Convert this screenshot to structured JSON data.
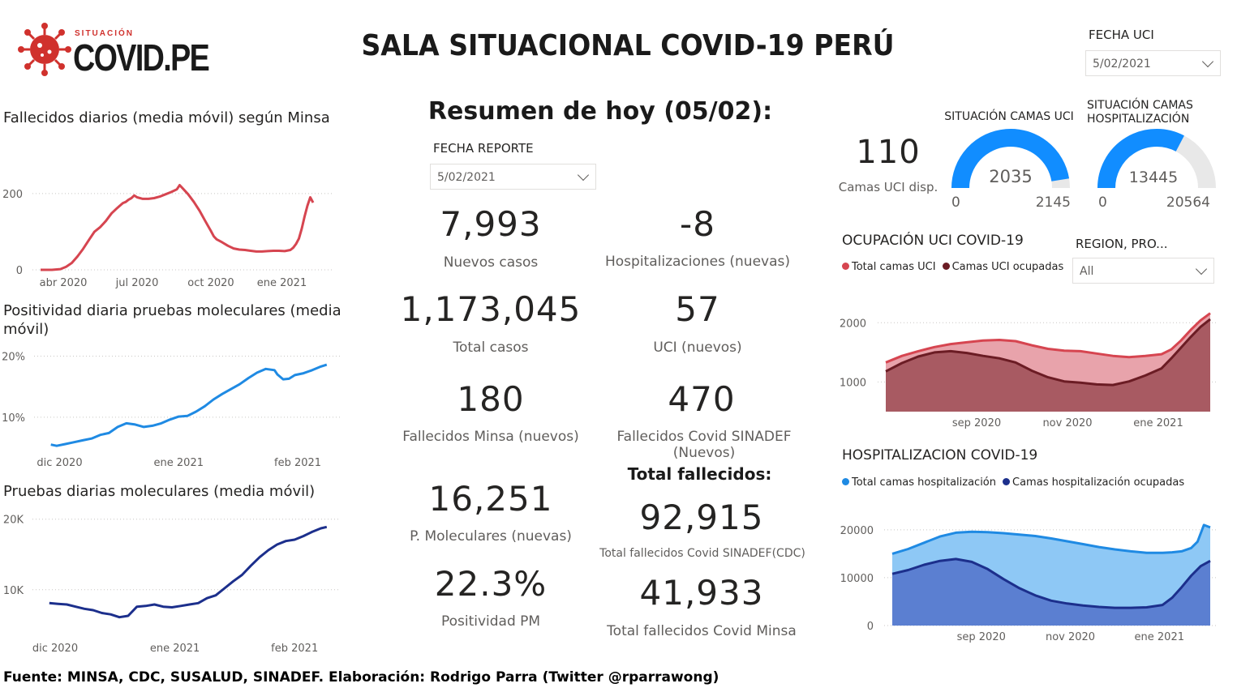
{
  "header": {
    "logo_small": "SITUACIÓN",
    "logo_big": "COVID.PE",
    "title": "SALA SITUACIONAL COVID-19 PERÚ"
  },
  "slicers": {
    "fecha_uci": {
      "label": "FECHA UCI",
      "value": "5/02/2021"
    },
    "fecha_reporte": {
      "label": "FECHA REPORTE",
      "value": "5/02/2021"
    },
    "region": {
      "label": "REGION, PRO...",
      "value": "All"
    }
  },
  "resumen_title": "Resumen de hoy (05/02):",
  "kpis": {
    "nuevos_casos": {
      "value": "7,993",
      "label": "Nuevos casos"
    },
    "hospitalizaciones": {
      "value": "-8",
      "label": "Hospitalizaciones (nuevas)"
    },
    "total_casos": {
      "value": "1,173,045",
      "label": "Total casos"
    },
    "uci_nuevos": {
      "value": "57",
      "label": "UCI (nuevos)"
    },
    "fallecidos_minsa": {
      "value": "180",
      "label": "Fallecidos Minsa (nuevos)"
    },
    "fallecidos_sinadef": {
      "value": "470",
      "label": "Fallecidos Covid SINADEF (Nuevos)"
    },
    "p_moleculares": {
      "value": "16,251",
      "label": "P. Moleculares (nuevas)"
    },
    "positividad": {
      "value": "22.3%",
      "label": "Positividad PM"
    },
    "total_fallecidos_title": "Total fallecidos:",
    "total_sinadef": {
      "value": "92,915",
      "label": "Total fallecidos Covid SINADEF(CDC)"
    },
    "total_minsa": {
      "value": "41,933",
      "label": "Total fallecidos Covid Minsa"
    },
    "camas_uci": {
      "value": "110",
      "label": "Camas UCI disp."
    }
  },
  "gauges": {
    "uci": {
      "title": "SITUACIÓN CAMAS UCI",
      "value": 2035,
      "min": 0,
      "max": 2145,
      "value_label": "2035",
      "min_label": "0",
      "max_label": "2145",
      "color": "#118dff"
    },
    "hosp": {
      "title_1": "SITUACIÓN CAMAS",
      "title_2": "HOSPITALIZACIÓN",
      "value": 13445,
      "min": 0,
      "max": 20564,
      "value_label": "13445",
      "min_label": "0",
      "max_label": "20564",
      "color": "#118dff"
    }
  },
  "footer": "Fuente: MINSA, CDC, SUSALUD, SINADEF. Elaboración: Rodrigo Parra (Twitter @rparrawong)",
  "chart_data": [
    {
      "id": "fallecidos",
      "type": "line",
      "title": "Fallecidos diarios (media móvil) según Minsa",
      "color": "#d64550",
      "xlim": [
        0,
        100
      ],
      "ylim": [
        0,
        240
      ],
      "x_ticks": [
        {
          "x": 8,
          "label": "abr 2020"
        },
        {
          "x": 34,
          "label": "jul 2020"
        },
        {
          "x": 60,
          "label": "oct 2020"
        },
        {
          "x": 85,
          "label": "ene 2021"
        }
      ],
      "y_ticks": [
        {
          "v": 0,
          "label": "0"
        },
        {
          "v": 200,
          "label": "200"
        }
      ],
      "points": [
        [
          0,
          0
        ],
        [
          4,
          0
        ],
        [
          7,
          2
        ],
        [
          9,
          8
        ],
        [
          11,
          18
        ],
        [
          13,
          35
        ],
        [
          15,
          55
        ],
        [
          17,
          78
        ],
        [
          19,
          100
        ],
        [
          21,
          112
        ],
        [
          23,
          128
        ],
        [
          25,
          148
        ],
        [
          27,
          162
        ],
        [
          29,
          175
        ],
        [
          30,
          178
        ],
        [
          31,
          184
        ],
        [
          32,
          188
        ],
        [
          33,
          195
        ],
        [
          34,
          190
        ],
        [
          36,
          186
        ],
        [
          38,
          186
        ],
        [
          40,
          188
        ],
        [
          42,
          192
        ],
        [
          44,
          198
        ],
        [
          46,
          204
        ],
        [
          48,
          211
        ],
        [
          49,
          222
        ],
        [
          50,
          214
        ],
        [
          52,
          198
        ],
        [
          54,
          178
        ],
        [
          56,
          155
        ],
        [
          58,
          128
        ],
        [
          60,
          102
        ],
        [
          61,
          88
        ],
        [
          62,
          80
        ],
        [
          64,
          72
        ],
        [
          66,
          63
        ],
        [
          68,
          56
        ],
        [
          70,
          53
        ],
        [
          72,
          52
        ],
        [
          74,
          50
        ],
        [
          76,
          48
        ],
        [
          78,
          48
        ],
        [
          80,
          49
        ],
        [
          82,
          50
        ],
        [
          84,
          50
        ],
        [
          86,
          49
        ],
        [
          88,
          52
        ],
        [
          89,
          58
        ],
        [
          90,
          68
        ],
        [
          91,
          82
        ],
        [
          92,
          108
        ],
        [
          93,
          140
        ],
        [
          94,
          168
        ],
        [
          95,
          190
        ],
        [
          96,
          176
        ]
      ]
    },
    {
      "id": "positividad",
      "type": "line",
      "title": "Positividad diaria pruebas moleculares (media móvil)",
      "color": "#1f8ae3",
      "xlim": [
        0,
        100
      ],
      "ylim": [
        4,
        21
      ],
      "x_ticks": [
        {
          "x": 6,
          "label": "dic 2020"
        },
        {
          "x": 47,
          "label": "ene 2021"
        },
        {
          "x": 88,
          "label": "feb 2021"
        }
      ],
      "y_ticks": [
        {
          "v": 10,
          "label": "10%"
        },
        {
          "v": 20,
          "label": "20%"
        }
      ],
      "points": [
        [
          3,
          5.5
        ],
        [
          5,
          5.3
        ],
        [
          8,
          5.6
        ],
        [
          11,
          5.9
        ],
        [
          14,
          6.2
        ],
        [
          17,
          6.5
        ],
        [
          20,
          7.1
        ],
        [
          23,
          7.4
        ],
        [
          26,
          8.4
        ],
        [
          29,
          9.0
        ],
        [
          32,
          8.8
        ],
        [
          35,
          8.4
        ],
        [
          38,
          8.6
        ],
        [
          41,
          9.0
        ],
        [
          44,
          9.6
        ],
        [
          47,
          10.1
        ],
        [
          50,
          10.2
        ],
        [
          53,
          10.9
        ],
        [
          56,
          11.8
        ],
        [
          59,
          12.9
        ],
        [
          62,
          13.8
        ],
        [
          65,
          14.6
        ],
        [
          68,
          15.4
        ],
        [
          71,
          16.4
        ],
        [
          74,
          17.3
        ],
        [
          77,
          17.9
        ],
        [
          80,
          17.7
        ],
        [
          81,
          17.0
        ],
        [
          83,
          16.2
        ],
        [
          85,
          16.3
        ],
        [
          87,
          16.9
        ],
        [
          90,
          17.2
        ],
        [
          93,
          17.7
        ],
        [
          96,
          18.3
        ],
        [
          98,
          18.6
        ]
      ]
    },
    {
      "id": "pruebas",
      "type": "line",
      "title": "Pruebas diarias moleculares (media móvil)",
      "color": "#1c2f8c",
      "xlim": [
        0,
        100
      ],
      "ylim": [
        4000,
        21000
      ],
      "x_ticks": [
        {
          "x": 5,
          "label": "dic 2020"
        },
        {
          "x": 46,
          "label": "ene 2021"
        },
        {
          "x": 87,
          "label": "feb 2021"
        }
      ],
      "y_ticks": [
        {
          "v": 10000,
          "label": "10K"
        },
        {
          "v": 20000,
          "label": "20K"
        }
      ],
      "points": [
        [
          3,
          8100
        ],
        [
          6,
          8000
        ],
        [
          9,
          7900
        ],
        [
          12,
          7600
        ],
        [
          15,
          7300
        ],
        [
          18,
          7100
        ],
        [
          21,
          6700
        ],
        [
          24,
          6500
        ],
        [
          27,
          6100
        ],
        [
          30,
          6300
        ],
        [
          33,
          7600
        ],
        [
          36,
          7700
        ],
        [
          39,
          7900
        ],
        [
          42,
          7600
        ],
        [
          45,
          7500
        ],
        [
          48,
          7700
        ],
        [
          51,
          7900
        ],
        [
          54,
          8100
        ],
        [
          57,
          8800
        ],
        [
          60,
          9200
        ],
        [
          63,
          10200
        ],
        [
          66,
          11200
        ],
        [
          69,
          12100
        ],
        [
          72,
          13400
        ],
        [
          75,
          14600
        ],
        [
          78,
          15600
        ],
        [
          81,
          16400
        ],
        [
          84,
          16900
        ],
        [
          87,
          17100
        ],
        [
          90,
          17600
        ],
        [
          93,
          18200
        ],
        [
          96,
          18700
        ],
        [
          98,
          18900
        ]
      ]
    },
    {
      "id": "uci",
      "type": "area",
      "title": "OCUPACIÓN UCI COVID-19",
      "xlim": [
        0,
        100
      ],
      "ylim": [
        500,
        2250
      ],
      "x_ticks": [
        {
          "x": 28,
          "label": "sep 2020"
        },
        {
          "x": 56,
          "label": "nov 2020"
        },
        {
          "x": 84,
          "label": "ene 2021"
        }
      ],
      "y_ticks": [
        {
          "v": 1000,
          "label": "1000"
        },
        {
          "v": 2000,
          "label": "2000"
        }
      ],
      "series": [
        {
          "name": "Total camas UCI",
          "color": "#d64550",
          "fill": "#e8a3ab",
          "points": [
            [
              0,
              1330
            ],
            [
              5,
              1440
            ],
            [
              10,
              1520
            ],
            [
              15,
              1590
            ],
            [
              20,
              1640
            ],
            [
              25,
              1670
            ],
            [
              30,
              1700
            ],
            [
              35,
              1710
            ],
            [
              40,
              1690
            ],
            [
              45,
              1620
            ],
            [
              50,
              1560
            ],
            [
              55,
              1530
            ],
            [
              60,
              1520
            ],
            [
              65,
              1480
            ],
            [
              70,
              1440
            ],
            [
              75,
              1420
            ],
            [
              80,
              1440
            ],
            [
              85,
              1470
            ],
            [
              88,
              1550
            ],
            [
              91,
              1700
            ],
            [
              94,
              1880
            ],
            [
              97,
              2040
            ],
            [
              100,
              2160
            ]
          ]
        },
        {
          "name": "Camas UCI ocupadas",
          "color": "#6b1c24",
          "fill": "#a85a62",
          "points": [
            [
              0,
              1180
            ],
            [
              5,
              1320
            ],
            [
              10,
              1430
            ],
            [
              15,
              1500
            ],
            [
              20,
              1520
            ],
            [
              25,
              1490
            ],
            [
              30,
              1440
            ],
            [
              35,
              1400
            ],
            [
              40,
              1330
            ],
            [
              45,
              1190
            ],
            [
              50,
              1080
            ],
            [
              55,
              1010
            ],
            [
              60,
              990
            ],
            [
              65,
              960
            ],
            [
              70,
              950
            ],
            [
              75,
              1010
            ],
            [
              80,
              1110
            ],
            [
              85,
              1230
            ],
            [
              88,
              1400
            ],
            [
              91,
              1580
            ],
            [
              94,
              1760
            ],
            [
              97,
              1930
            ],
            [
              100,
              2060
            ]
          ]
        }
      ]
    },
    {
      "id": "hosp",
      "type": "area",
      "title": "HOSPITALIZACION COVID-19",
      "xlim": [
        0,
        100
      ],
      "ylim": [
        0,
        22000
      ],
      "x_ticks": [
        {
          "x": 28,
          "label": "sep 2020"
        },
        {
          "x": 56,
          "label": "nov 2020"
        },
        {
          "x": 84,
          "label": "ene 2021"
        }
      ],
      "y_ticks": [
        {
          "v": 0,
          "label": "0"
        },
        {
          "v": 10000,
          "label": "10000"
        },
        {
          "v": 20000,
          "label": "20000"
        }
      ],
      "series": [
        {
          "name": "Total camas hospitalización",
          "color": "#1f8ae3",
          "fill": "#8ec8f5",
          "points": [
            [
              0,
              15000
            ],
            [
              5,
              16000
            ],
            [
              10,
              17300
            ],
            [
              15,
              18600
            ],
            [
              20,
              19400
            ],
            [
              25,
              19600
            ],
            [
              30,
              19500
            ],
            [
              35,
              19300
            ],
            [
              40,
              19000
            ],
            [
              45,
              18700
            ],
            [
              50,
              18200
            ],
            [
              55,
              17600
            ],
            [
              60,
              17000
            ],
            [
              65,
              16400
            ],
            [
              70,
              15900
            ],
            [
              75,
              15500
            ],
            [
              80,
              15200
            ],
            [
              85,
              15200
            ],
            [
              88,
              15300
            ],
            [
              91,
              15500
            ],
            [
              94,
              16200
            ],
            [
              96,
              17500
            ],
            [
              98,
              21000
            ],
            [
              100,
              20500
            ]
          ]
        },
        {
          "name": "Camas hospitalización ocupadas",
          "color": "#1c2f8c",
          "fill": "#5b7fd1",
          "points": [
            [
              0,
              10800
            ],
            [
              5,
              11600
            ],
            [
              10,
              12700
            ],
            [
              15,
              13500
            ],
            [
              20,
              13900
            ],
            [
              25,
              13300
            ],
            [
              30,
              11800
            ],
            [
              35,
              9700
            ],
            [
              40,
              7800
            ],
            [
              45,
              6300
            ],
            [
              50,
              5200
            ],
            [
              55,
              4600
            ],
            [
              60,
              4200
            ],
            [
              65,
              3900
            ],
            [
              70,
              3700
            ],
            [
              75,
              3700
            ],
            [
              80,
              3800
            ],
            [
              85,
              4300
            ],
            [
              88,
              5800
            ],
            [
              91,
              8000
            ],
            [
              94,
              10400
            ],
            [
              97,
              12400
            ],
            [
              100,
              13500
            ]
          ]
        }
      ]
    }
  ]
}
